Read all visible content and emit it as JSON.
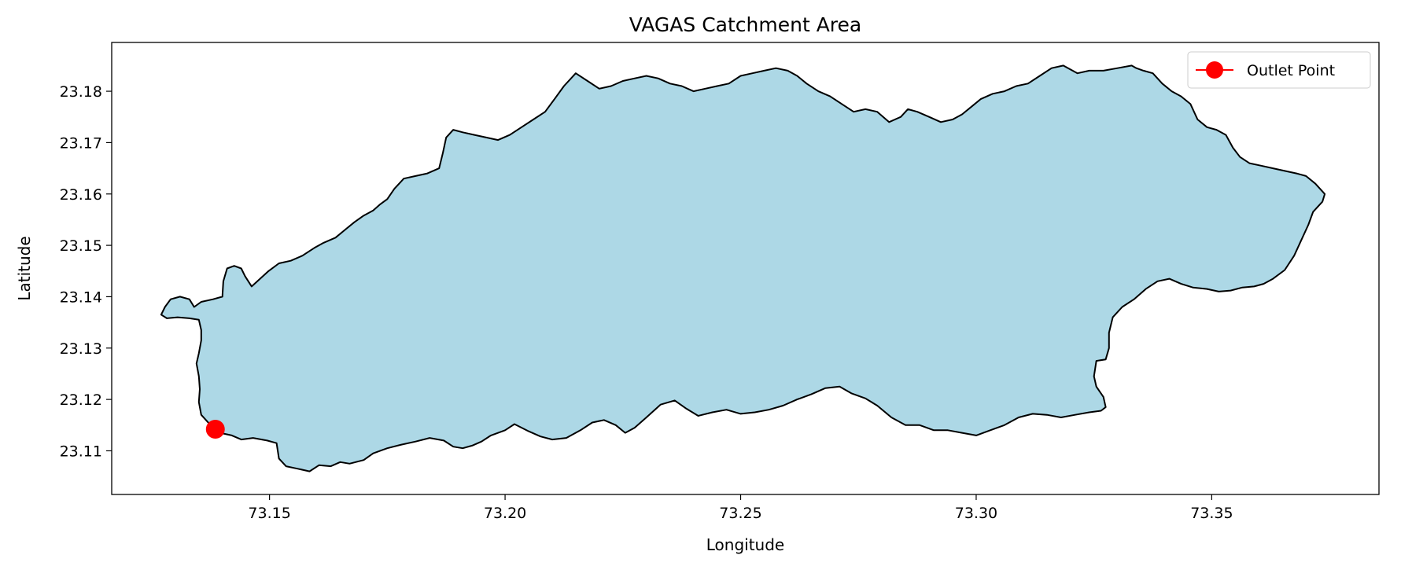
{
  "chart_data": {
    "type": "map",
    "title": "VAGAS Catchment Area",
    "xlabel": "Longitude",
    "ylabel": "Latitude",
    "xlim": [
      73.1165,
      73.3855
    ],
    "ylim": [
      23.1015,
      23.1895
    ],
    "xticks": [
      73.15,
      73.2,
      73.25,
      73.3,
      73.35
    ],
    "yticks": [
      23.11,
      23.12,
      23.13,
      23.14,
      23.15,
      23.16,
      23.17,
      23.18
    ],
    "tick_format_x": 2,
    "tick_format_y": 2,
    "grid": false,
    "legend_position": "top-right",
    "catchment": {
      "fill": "#add8e6",
      "edge": "#000000",
      "boundary": [
        [
          73.1385,
          23.1145
        ],
        [
          73.1395,
          23.1135
        ],
        [
          73.142,
          23.113
        ],
        [
          73.144,
          23.1122
        ],
        [
          73.1465,
          23.1125
        ],
        [
          73.1495,
          23.112
        ],
        [
          73.1515,
          23.1115
        ],
        [
          73.152,
          23.1085
        ],
        [
          73.1535,
          23.107
        ],
        [
          73.156,
          23.1065
        ],
        [
          73.1585,
          23.106
        ],
        [
          73.1605,
          23.1072
        ],
        [
          73.163,
          23.107
        ],
        [
          73.165,
          23.1078
        ],
        [
          73.167,
          23.1075
        ],
        [
          73.17,
          23.1082
        ],
        [
          73.172,
          23.1095
        ],
        [
          73.175,
          23.1105
        ],
        [
          73.178,
          23.1112
        ],
        [
          73.181,
          23.1118
        ],
        [
          73.184,
          23.1125
        ],
        [
          73.187,
          23.112
        ],
        [
          73.189,
          23.1108
        ],
        [
          73.191,
          23.1105
        ],
        [
          73.193,
          23.111
        ],
        [
          73.195,
          23.1118
        ],
        [
          73.197,
          23.113
        ],
        [
          73.2,
          23.114
        ],
        [
          73.202,
          23.1152
        ],
        [
          73.205,
          23.1138
        ],
        [
          73.2075,
          23.1128
        ],
        [
          73.21,
          23.1122
        ],
        [
          73.213,
          23.1125
        ],
        [
          73.216,
          23.114
        ],
        [
          73.2185,
          23.1155
        ],
        [
          73.221,
          23.116
        ],
        [
          73.2235,
          23.115
        ],
        [
          73.2255,
          23.1135
        ],
        [
          73.2275,
          23.1145
        ],
        [
          73.23,
          23.1165
        ],
        [
          73.233,
          23.119
        ],
        [
          73.236,
          23.1198
        ],
        [
          73.2385,
          23.1182
        ],
        [
          73.241,
          23.1168
        ],
        [
          73.244,
          23.1175
        ],
        [
          73.247,
          23.118
        ],
        [
          73.25,
          23.1172
        ],
        [
          73.253,
          23.1175
        ],
        [
          73.256,
          23.118
        ],
        [
          73.259,
          23.1188
        ],
        [
          73.262,
          23.12
        ],
        [
          73.265,
          23.121
        ],
        [
          73.268,
          23.1222
        ],
        [
          73.271,
          23.1225
        ],
        [
          73.2735,
          23.1212
        ],
        [
          73.2765,
          23.1202
        ],
        [
          73.279,
          23.1188
        ],
        [
          73.282,
          23.1165
        ],
        [
          73.285,
          23.115
        ],
        [
          73.288,
          23.115
        ],
        [
          73.291,
          23.114
        ],
        [
          73.294,
          23.114
        ],
        [
          73.297,
          23.1135
        ],
        [
          73.3,
          23.113
        ],
        [
          73.303,
          23.114
        ],
        [
          73.306,
          23.115
        ],
        [
          73.309,
          23.1165
        ],
        [
          73.312,
          23.1172
        ],
        [
          73.315,
          23.117
        ],
        [
          73.318,
          23.1165
        ],
        [
          73.321,
          23.117
        ],
        [
          73.324,
          23.1175
        ],
        [
          73.3265,
          23.1178
        ],
        [
          73.3275,
          23.1185
        ],
        [
          73.327,
          23.1205
        ],
        [
          73.3255,
          23.1225
        ],
        [
          73.325,
          23.1245
        ],
        [
          73.3255,
          23.1275
        ],
        [
          73.3275,
          23.1278
        ],
        [
          73.3282,
          23.13
        ],
        [
          73.3282,
          23.133
        ],
        [
          73.329,
          23.136
        ],
        [
          73.331,
          23.138
        ],
        [
          73.3335,
          23.1395
        ],
        [
          73.336,
          23.1415
        ],
        [
          73.3385,
          23.143
        ],
        [
          73.341,
          23.1435
        ],
        [
          73.3435,
          23.1425
        ],
        [
          73.346,
          23.1418
        ],
        [
          73.349,
          23.1415
        ],
        [
          73.3515,
          23.141
        ],
        [
          73.354,
          23.1412
        ],
        [
          73.3565,
          23.1418
        ],
        [
          73.359,
          23.142
        ],
        [
          73.361,
          23.1425
        ],
        [
          73.363,
          23.1435
        ],
        [
          73.3655,
          23.1452
        ],
        [
          73.3675,
          23.148
        ],
        [
          73.369,
          23.151
        ],
        [
          73.3705,
          23.154
        ],
        [
          73.3715,
          23.1565
        ],
        [
          73.3735,
          23.1585
        ],
        [
          73.374,
          23.16
        ],
        [
          73.372,
          23.162
        ],
        [
          73.37,
          23.1635
        ],
        [
          73.368,
          23.164
        ],
        [
          73.3655,
          23.1645
        ],
        [
          73.363,
          23.165
        ],
        [
          73.3605,
          23.1655
        ],
        [
          73.358,
          23.166
        ],
        [
          73.356,
          23.1672
        ],
        [
          73.3545,
          23.169
        ],
        [
          73.353,
          23.1715
        ],
        [
          73.351,
          23.1725
        ],
        [
          73.349,
          23.173
        ],
        [
          73.347,
          23.1745
        ],
        [
          73.3455,
          23.1775
        ],
        [
          73.3435,
          23.179
        ],
        [
          73.3415,
          23.18
        ],
        [
          73.3395,
          23.1815
        ],
        [
          73.3375,
          23.1835
        ],
        [
          73.3355,
          23.184
        ],
        [
          73.334,
          23.1845
        ],
        [
          73.333,
          23.185
        ],
        [
          73.33,
          23.1845
        ],
        [
          73.327,
          23.184
        ],
        [
          73.324,
          23.184
        ],
        [
          73.3215,
          23.1835
        ],
        [
          73.3185,
          23.185
        ],
        [
          73.316,
          23.1845
        ],
        [
          73.3135,
          23.183
        ],
        [
          73.311,
          23.1815
        ],
        [
          73.3085,
          23.181
        ],
        [
          73.306,
          23.18
        ],
        [
          73.3035,
          23.1795
        ],
        [
          73.301,
          23.1785
        ],
        [
          73.299,
          23.177
        ],
        [
          73.297,
          23.1755
        ],
        [
          73.295,
          23.1745
        ],
        [
          73.2925,
          23.174
        ],
        [
          73.29,
          23.175
        ],
        [
          73.2875,
          23.176
        ],
        [
          73.2855,
          23.1765
        ],
        [
          73.284,
          23.175
        ],
        [
          73.2815,
          23.174
        ],
        [
          73.279,
          23.176
        ],
        [
          73.2765,
          23.1765
        ],
        [
          73.274,
          23.176
        ],
        [
          73.2715,
          23.1775
        ],
        [
          73.269,
          23.179
        ],
        [
          73.2665,
          23.18
        ],
        [
          73.264,
          23.1815
        ],
        [
          73.262,
          23.183
        ],
        [
          73.26,
          23.184
        ],
        [
          73.2575,
          23.1845
        ],
        [
          73.255,
          23.184
        ],
        [
          73.2525,
          23.1835
        ],
        [
          73.25,
          23.183
        ],
        [
          73.2475,
          23.1815
        ],
        [
          73.245,
          23.181
        ],
        [
          73.2425,
          23.1805
        ],
        [
          73.24,
          23.18
        ],
        [
          73.2375,
          23.181
        ],
        [
          73.235,
          23.1815
        ],
        [
          73.2325,
          23.1825
        ],
        [
          73.23,
          23.183
        ],
        [
          73.2275,
          23.1825
        ],
        [
          73.225,
          23.182
        ],
        [
          73.2225,
          23.181
        ],
        [
          73.22,
          23.1805
        ],
        [
          73.2175,
          23.182
        ],
        [
          73.215,
          23.1835
        ],
        [
          73.2125,
          23.181
        ],
        [
          73.2105,
          23.1785
        ],
        [
          73.2085,
          23.176
        ],
        [
          73.206,
          23.1745
        ],
        [
          73.2035,
          23.173
        ],
        [
          73.201,
          23.1715
        ],
        [
          73.1985,
          23.1705
        ],
        [
          73.196,
          23.171
        ],
        [
          73.1935,
          23.1715
        ],
        [
          73.191,
          23.172
        ],
        [
          73.189,
          23.1725
        ],
        [
          73.1875,
          23.171
        ],
        [
          73.1868,
          23.168
        ],
        [
          73.186,
          23.165
        ],
        [
          73.1835,
          23.164
        ],
        [
          73.181,
          23.1635
        ],
        [
          73.1785,
          23.163
        ],
        [
          73.1765,
          23.161
        ],
        [
          73.175,
          23.159
        ],
        [
          73.1735,
          23.158
        ],
        [
          73.172,
          23.1568
        ],
        [
          73.17,
          23.1558
        ],
        [
          73.168,
          23.1545
        ],
        [
          73.166,
          23.153
        ],
        [
          73.164,
          23.1515
        ],
        [
          73.1615,
          23.1505
        ],
        [
          73.1595,
          23.1495
        ],
        [
          73.157,
          23.148
        ],
        [
          73.1545,
          23.147
        ],
        [
          73.152,
          23.1465
        ],
        [
          73.1498,
          23.145
        ],
        [
          73.148,
          23.1435
        ],
        [
          73.1462,
          23.142
        ],
        [
          73.1448,
          23.144
        ],
        [
          73.144,
          23.1455
        ],
        [
          73.1425,
          23.146
        ],
        [
          73.141,
          23.1455
        ],
        [
          73.1402,
          23.143
        ],
        [
          73.14,
          23.14
        ],
        [
          73.138,
          23.1395
        ],
        [
          73.1355,
          23.139
        ],
        [
          73.134,
          23.138
        ],
        [
          73.133,
          23.1395
        ],
        [
          73.131,
          23.14
        ],
        [
          73.129,
          23.1395
        ],
        [
          73.1278,
          23.138
        ],
        [
          73.127,
          23.1365
        ],
        [
          73.1282,
          23.1358
        ],
        [
          73.1305,
          23.136
        ],
        [
          73.133,
          23.1358
        ],
        [
          73.135,
          23.1355
        ],
        [
          73.1355,
          23.1335
        ],
        [
          73.1355,
          23.1315
        ],
        [
          73.135,
          23.129
        ],
        [
          73.1345,
          23.127
        ],
        [
          73.135,
          23.1245
        ],
        [
          73.1352,
          23.122
        ],
        [
          73.135,
          23.1195
        ],
        [
          73.1355,
          23.117
        ],
        [
          73.1365,
          23.116
        ],
        [
          73.1375,
          23.115
        ]
      ]
    },
    "outlet": {
      "label": "Outlet Point",
      "lon": 73.1385,
      "lat": 23.1142,
      "color": "#ff0000"
    }
  }
}
